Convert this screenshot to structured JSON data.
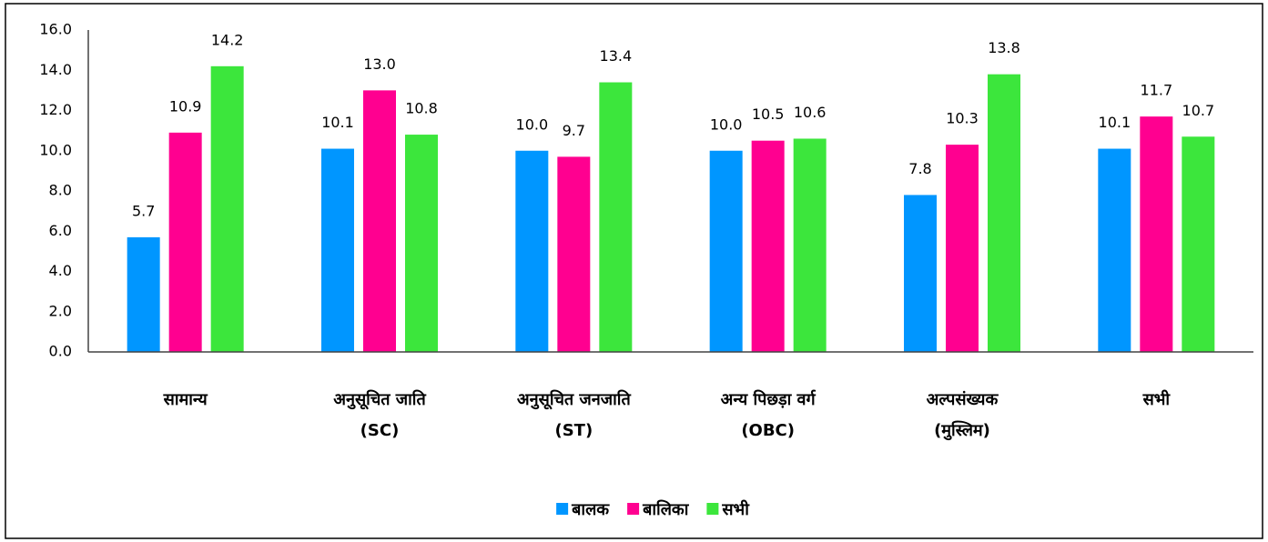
{
  "chart_data": {
    "type": "bar",
    "categories": [
      "सामान्य",
      "अनुसूचित जाति\n(SC)",
      "अनुसूचित जनजाति\n(ST)",
      "अन्य पिछड़ा वर्ग\n(OBC)",
      "अल्पसंख्यक\n(मुस्लिम)",
      "सभी"
    ],
    "series": [
      {
        "name": "बालक",
        "color": "#0096FF",
        "values": [
          5.7,
          10.1,
          10.0,
          10.0,
          7.8,
          10.1
        ],
        "value_labels": [
          "5.7",
          "10.1",
          "10.0",
          "10.0",
          "7.8",
          "10.1"
        ]
      },
      {
        "name": "बालिका",
        "color": "#FF0090",
        "values": [
          10.9,
          13.0,
          9.7,
          10.5,
          10.3,
          11.7
        ],
        "value_labels": [
          "10.9",
          "13.0",
          "9.7",
          "10.5",
          "10.3",
          "11.7"
        ]
      },
      {
        "name": "सभी",
        "color": "#3CE63C",
        "values": [
          14.2,
          10.8,
          13.4,
          10.6,
          13.8,
          10.7
        ],
        "value_labels": [
          "14.2",
          "10.8",
          "13.4",
          "10.6",
          "13.8",
          "10.7"
        ]
      }
    ],
    "ylim": [
      0,
      16
    ],
    "yticks": [
      {
        "value": 0,
        "label": "0.0"
      },
      {
        "value": 2,
        "label": "2.0"
      },
      {
        "value": 4,
        "label": "4.0"
      },
      {
        "value": 6,
        "label": "6.0"
      },
      {
        "value": 8,
        "label": "8.0"
      },
      {
        "value": 10,
        "label": "10.0"
      },
      {
        "value": 12,
        "label": "12.0"
      },
      {
        "value": 14,
        "label": "14.0"
      },
      {
        "value": 16,
        "label": "16.0"
      }
    ],
    "grid": false,
    "legend": "bottom"
  }
}
